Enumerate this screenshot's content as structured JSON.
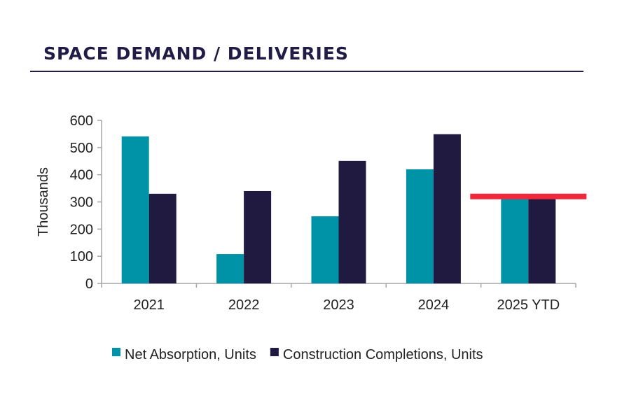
{
  "title": "SPACE DEMAND / DELIVERIES",
  "chart_data": {
    "type": "bar",
    "title": "SPACE DEMAND / DELIVERIES",
    "xlabel": "",
    "ylabel": "Thousands",
    "ylim": [
      0,
      600
    ],
    "yticks": [
      0,
      100,
      200,
      300,
      400,
      500,
      600
    ],
    "categories": [
      "2021",
      "2022",
      "2023",
      "2024",
      "2025 YTD"
    ],
    "series": [
      {
        "name": "Net Absorption, Units",
        "color": "#0093a8",
        "values": [
          541,
          108,
          247,
          420,
          312
        ]
      },
      {
        "name": "Construction Completions, Units",
        "color": "#211a40",
        "values": [
          330,
          340,
          451,
          549,
          312
        ]
      }
    ],
    "annotations": [
      {
        "type": "horizontal-marker",
        "category": "2025 YTD",
        "value": 320,
        "color": "#f0283c"
      }
    ],
    "legend": "bottom",
    "grid": false
  }
}
